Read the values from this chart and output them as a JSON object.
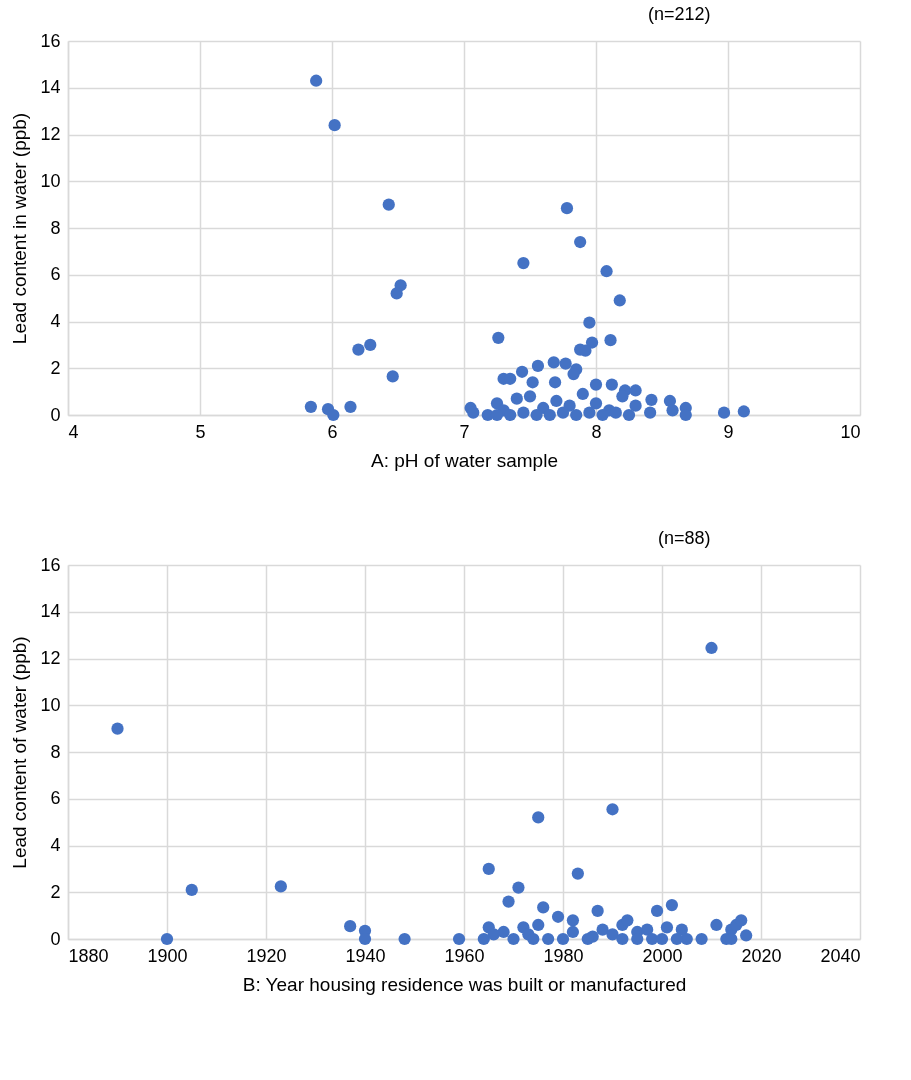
{
  "chart_data": [
    {
      "type": "scatter",
      "xlabel": "A: pH of water sample",
      "ylabel": "Lead content in water (ppb)",
      "annotations": [
        "(n=212)"
      ],
      "xlim": [
        4,
        10
      ],
      "xticks": [
        4,
        5,
        6,
        7,
        8,
        9,
        10
      ],
      "ylim": [
        0,
        16
      ],
      "yticks": [
        0,
        2,
        4,
        6,
        8,
        10,
        12,
        14,
        16
      ],
      "grid": true,
      "marker": "circle",
      "series": [
        {
          "color": "#4472c4",
          "x": [
            5.88,
            6.02,
            6.43,
            6.52,
            6.49,
            6.29,
            6.2,
            6.46,
            5.84,
            5.97,
            6.01,
            6.14,
            7.78,
            7.88,
            7.45,
            8.08,
            8.18,
            7.95,
            7.97,
            8.11,
            7.26,
            7.88,
            7.92,
            7.68,
            7.77,
            7.56,
            7.85,
            7.83,
            7.44,
            7.3,
            7.35,
            7.52,
            7.69,
            8.0,
            8.12,
            8.22,
            8.3,
            8.2,
            8.42,
            8.56,
            8.68,
            8.58,
            8.68,
            8.41,
            8.97,
            9.12,
            7.05,
            7.07,
            7.18,
            7.25,
            7.4,
            7.5,
            7.6,
            7.7,
            7.8,
            7.9,
            8.0,
            8.1,
            8.3,
            7.3,
            7.45,
            7.55,
            7.65,
            7.75,
            7.85,
            7.95,
            8.05,
            8.15,
            8.25,
            7.35,
            7.25
          ],
          "values": [
            14.3,
            12.4,
            9.0,
            5.55,
            5.2,
            3.0,
            2.8,
            1.65,
            0.35,
            0.25,
            0.0,
            0.35,
            8.85,
            7.4,
            6.5,
            6.15,
            4.9,
            3.95,
            3.1,
            3.2,
            3.3,
            2.8,
            2.75,
            2.25,
            2.2,
            2.1,
            1.95,
            1.75,
            1.85,
            1.55,
            1.55,
            1.4,
            1.4,
            1.3,
            1.3,
            1.05,
            1.05,
            0.8,
            0.65,
            0.6,
            0.3,
            0.2,
            0.0,
            0.1,
            0.1,
            0.15,
            0.3,
            0.1,
            0.0,
            0.5,
            0.7,
            0.8,
            0.3,
            0.6,
            0.4,
            0.9,
            0.5,
            0.2,
            0.4,
            0.2,
            0.1,
            0.0,
            0.0,
            0.1,
            0.0,
            0.1,
            0.0,
            0.1,
            0.0,
            0.0,
            0.0
          ]
        }
      ]
    },
    {
      "type": "scatter",
      "xlabel": "B: Year housing residence was built or manufactured",
      "ylabel": "Lead content of water (ppb)",
      "annotations": [
        "(n=88)"
      ],
      "xlim": [
        1880,
        2040
      ],
      "xticks": [
        1880,
        1900,
        1920,
        1940,
        1960,
        1980,
        2000,
        2020,
        2040
      ],
      "ylim": [
        0,
        16
      ],
      "yticks": [
        0,
        2,
        4,
        6,
        8,
        10,
        12,
        14,
        16
      ],
      "grid": true,
      "marker": "circle",
      "series": [
        {
          "color": "#4472c4",
          "x": [
            1890,
            1900,
            1905,
            1923,
            1937,
            1940,
            1940,
            1948,
            1959,
            1964,
            1965,
            1965,
            1968,
            1969,
            1971,
            1970,
            1972,
            1973,
            1975,
            1975,
            1976,
            1977,
            1979,
            1983,
            1990,
            1982,
            1982,
            1987,
            1988,
            1986,
            1990,
            1992,
            1993,
            1995,
            1997,
            1999,
            2001,
            2002,
            2004,
            2005,
            2008,
            2010,
            2011,
            2014,
            2015,
            2016,
            2017,
            2013,
            2014,
            1995,
            1985,
            1980,
            1998,
            2000,
            2003,
            1992,
            1974,
            1966
          ],
          "values": [
            9.0,
            0,
            2.1,
            2.25,
            0.55,
            0.35,
            0,
            0,
            0,
            0,
            3.0,
            0.5,
            0.3,
            1.6,
            2.2,
            0,
            0.5,
            0.2,
            5.2,
            0.6,
            1.35,
            0,
            0.95,
            2.8,
            5.55,
            0.8,
            0.3,
            1.2,
            0.4,
            0.1,
            0.2,
            0.6,
            0.8,
            0.3,
            0.4,
            1.2,
            0.5,
            1.45,
            0.4,
            0,
            0,
            12.45,
            0.6,
            0.4,
            0.6,
            0.8,
            0.15,
            0,
            0,
            0,
            0,
            0,
            0,
            0,
            0,
            0,
            0,
            0.2
          ]
        }
      ]
    }
  ]
}
